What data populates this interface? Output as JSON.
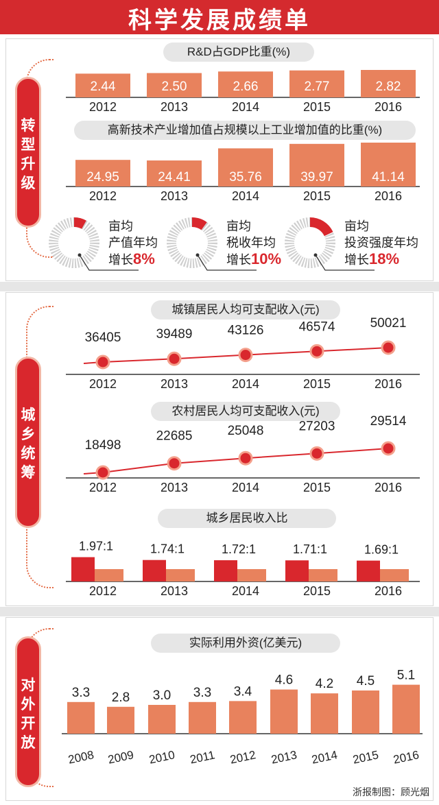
{
  "title": "科学发展成绩单",
  "sections": [
    {
      "tag": [
        "转",
        "型",
        "升",
        "级"
      ]
    },
    {
      "tag": [
        "城",
        "乡",
        "统",
        "筹"
      ]
    },
    {
      "tag": [
        "对",
        "外",
        "开",
        "放"
      ]
    }
  ],
  "donuts": [
    {
      "line1": "亩均",
      "line2": "产值年均",
      "prefix": "增长",
      "value": "8%",
      "fraction": 0.08
    },
    {
      "line1": "亩均",
      "line2": "税收年均",
      "prefix": "增长",
      "value": "10%",
      "fraction": 0.1
    },
    {
      "line1": "亩均",
      "line2": "投资强度年均",
      "prefix": "增长",
      "value": "18%",
      "fraction": 0.18
    }
  ],
  "credit": "浙报制图：顾光烟",
  "colors": {
    "banner": "#d42a2e",
    "bar": "#e8825d",
    "red": "#d9272d",
    "pill": "#e6e6e6"
  },
  "chart_data": [
    {
      "type": "bar",
      "title": "R&D占GDP比重(%)",
      "categories": [
        "2012",
        "2013",
        "2014",
        "2015",
        "2016"
      ],
      "values": [
        2.44,
        2.5,
        2.66,
        2.77,
        2.82
      ],
      "labels": [
        "2.44",
        "2.50",
        "2.66",
        "2.77",
        "2.82"
      ]
    },
    {
      "type": "bar",
      "title": "高新技术产业增加值占规模以上工业增加值的比重(%)",
      "categories": [
        "2012",
        "2013",
        "2014",
        "2015",
        "2016"
      ],
      "values": [
        24.95,
        24.41,
        35.76,
        39.97,
        41.14
      ],
      "labels": [
        "24.95",
        "24.41",
        "35.76",
        "39.97",
        "41.14"
      ]
    },
    {
      "type": "line",
      "title": "城镇居民人均可支配收入(元)",
      "categories": [
        "2012",
        "2013",
        "2014",
        "2015",
        "2016"
      ],
      "values": [
        36405,
        39489,
        43126,
        46574,
        50021
      ],
      "labels": [
        "36405",
        "39489",
        "43126",
        "46574",
        "50021"
      ]
    },
    {
      "type": "line",
      "title": "农村居民人均可支配收入(元)",
      "categories": [
        "2012",
        "2013",
        "2014",
        "2015",
        "2016"
      ],
      "values": [
        18498,
        22685,
        25048,
        27203,
        29514
      ],
      "labels": [
        "18498",
        "22685",
        "25048",
        "27203",
        "29514"
      ]
    },
    {
      "type": "bar",
      "title": "城乡居民收入比",
      "categories": [
        "2012",
        "2013",
        "2014",
        "2015",
        "2016"
      ],
      "values": [
        1.97,
        1.74,
        1.72,
        1.71,
        1.69
      ],
      "labels": [
        "1.97:1",
        "1.74:1",
        "1.72:1",
        "1.71:1",
        "1.69:1"
      ]
    },
    {
      "type": "bar",
      "title": "实际利用外资(亿美元)",
      "categories": [
        "2008",
        "2009",
        "2010",
        "2011",
        "2012",
        "2013",
        "2014",
        "2015",
        "2016"
      ],
      "values": [
        3.3,
        2.8,
        3.0,
        3.3,
        3.4,
        4.6,
        4.2,
        4.5,
        5.1
      ],
      "labels": [
        "3.3",
        "2.8",
        "3.0",
        "3.3",
        "3.4",
        "4.6",
        "4.2",
        "4.5",
        "5.1"
      ]
    }
  ]
}
